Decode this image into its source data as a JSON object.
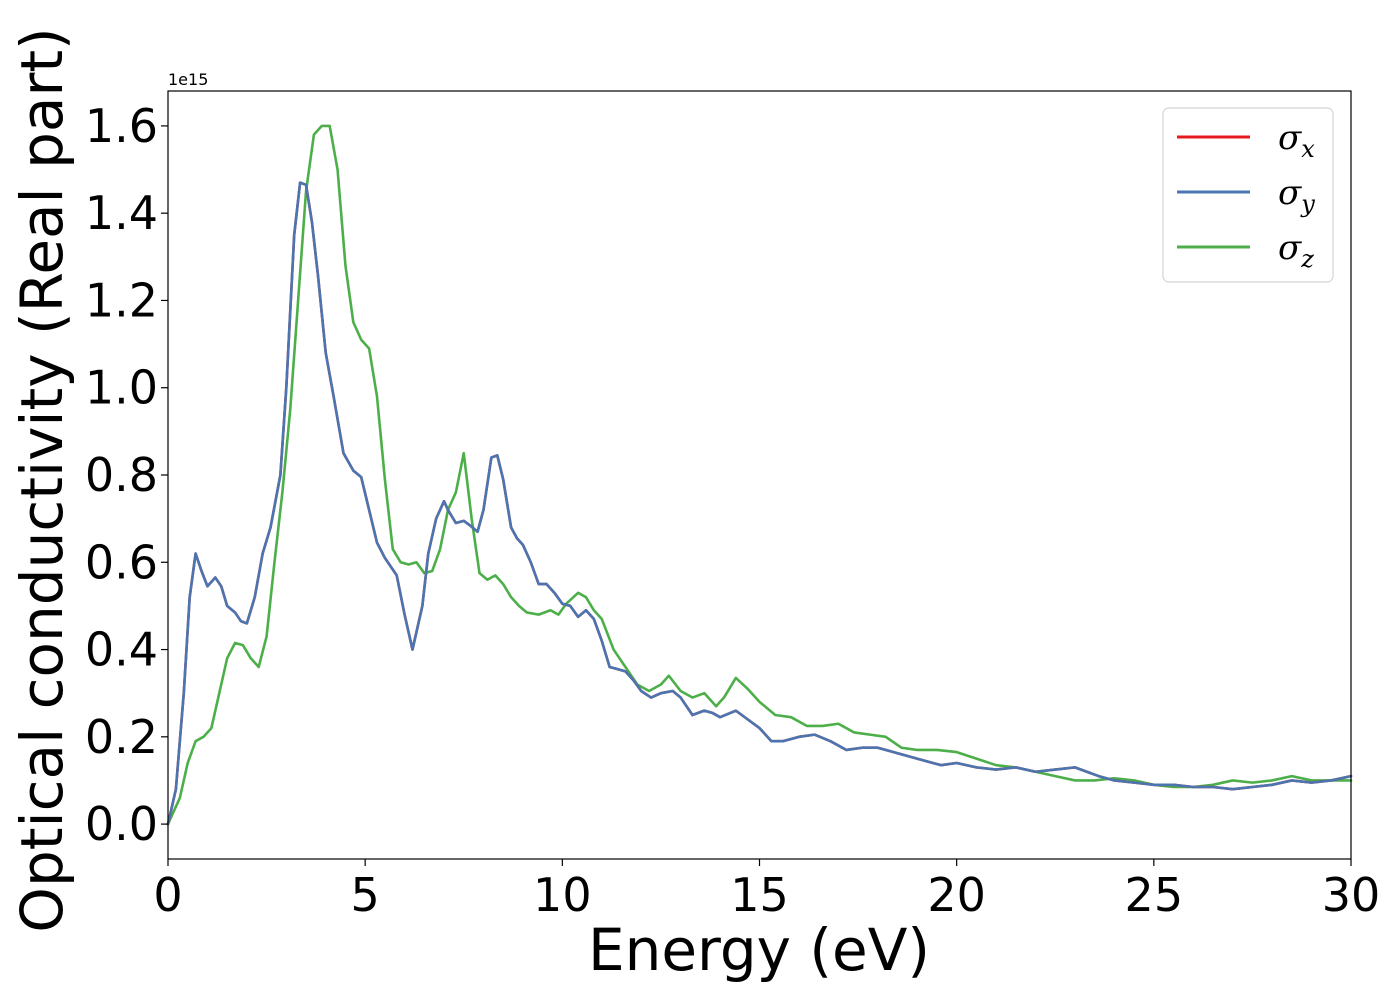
{
  "chart_data": {
    "type": "line",
    "title": "",
    "xlabel": "Energy (eV)",
    "ylabel": "Optical conductivity (Real part)",
    "y_offset_label": "1e15",
    "xlim": [
      0,
      30
    ],
    "ylim": [
      -0.08,
      1.68
    ],
    "xticks": [
      "0",
      "5",
      "10",
      "15",
      "20",
      "25",
      "30"
    ],
    "xtick_values": [
      0,
      5,
      10,
      15,
      20,
      25,
      30
    ],
    "yticks": [
      "0.0",
      "0.2",
      "0.4",
      "0.6",
      "0.8",
      "1.0",
      "1.2",
      "1.4",
      "1.6"
    ],
    "ytick_values": [
      0.0,
      0.2,
      0.4,
      0.6,
      0.8,
      1.0,
      1.2,
      1.4,
      1.6
    ],
    "grid": false,
    "legend_position": "top-right",
    "series": [
      {
        "name": "σx",
        "symbol": "σ",
        "subscript": "x",
        "color": "#e41a1c",
        "x": [
          0,
          0.2,
          0.4,
          0.55,
          0.7,
          0.85,
          1.0,
          1.2,
          1.35,
          1.5,
          1.7,
          1.85,
          2.0,
          2.2,
          2.4,
          2.6,
          2.85,
          3.0,
          3.2,
          3.35,
          3.5,
          3.65,
          3.8,
          4.0,
          4.2,
          4.45,
          4.7,
          4.9,
          5.1,
          5.3,
          5.5,
          5.8,
          6.0,
          6.2,
          6.45,
          6.6,
          6.8,
          7.0,
          7.1,
          7.3,
          7.5,
          7.65,
          7.85,
          8.0,
          8.2,
          8.35,
          8.5,
          8.7,
          8.85,
          9.0,
          9.2,
          9.4,
          9.6,
          9.8,
          10.0,
          10.2,
          10.4,
          10.6,
          10.8,
          11.0,
          11.2,
          11.4,
          11.6,
          11.8,
          12.0,
          12.25,
          12.5,
          12.8,
          13.0,
          13.3,
          13.6,
          13.8,
          14.0,
          14.4,
          14.7,
          15.0,
          15.3,
          15.6,
          16.0,
          16.4,
          16.8,
          17.2,
          17.6,
          18.0,
          18.4,
          18.8,
          19.2,
          19.6,
          20.0,
          20.5,
          21.0,
          21.5,
          22.0,
          22.5,
          23.0,
          23.3,
          23.6,
          24.0,
          24.5,
          25.0,
          25.5,
          26.0,
          26.5,
          27.0,
          27.5,
          28.0,
          28.5,
          29.0,
          29.5,
          30.0
        ],
        "values": [
          0.0,
          0.08,
          0.3,
          0.52,
          0.62,
          0.58,
          0.545,
          0.565,
          0.545,
          0.5,
          0.485,
          0.465,
          0.46,
          0.52,
          0.62,
          0.68,
          0.8,
          1.0,
          1.35,
          1.47,
          1.465,
          1.38,
          1.26,
          1.08,
          0.98,
          0.85,
          0.81,
          0.795,
          0.72,
          0.645,
          0.61,
          0.57,
          0.48,
          0.4,
          0.5,
          0.62,
          0.7,
          0.74,
          0.72,
          0.69,
          0.695,
          0.685,
          0.67,
          0.72,
          0.84,
          0.845,
          0.79,
          0.68,
          0.655,
          0.64,
          0.6,
          0.55,
          0.55,
          0.53,
          0.505,
          0.5,
          0.475,
          0.49,
          0.47,
          0.42,
          0.36,
          0.355,
          0.35,
          0.33,
          0.305,
          0.29,
          0.3,
          0.305,
          0.29,
          0.25,
          0.26,
          0.255,
          0.245,
          0.26,
          0.24,
          0.22,
          0.19,
          0.19,
          0.2,
          0.205,
          0.19,
          0.17,
          0.175,
          0.175,
          0.165,
          0.155,
          0.145,
          0.135,
          0.14,
          0.13,
          0.125,
          0.13,
          0.12,
          0.125,
          0.13,
          0.12,
          0.11,
          0.1,
          0.095,
          0.09,
          0.09,
          0.085,
          0.085,
          0.08,
          0.085,
          0.09,
          0.1,
          0.095,
          0.1,
          0.11
        ]
      },
      {
        "name": "σy",
        "symbol": "σ",
        "subscript": "y",
        "color": "#4a75b0",
        "x": [
          0,
          0.2,
          0.4,
          0.55,
          0.7,
          0.85,
          1.0,
          1.2,
          1.35,
          1.5,
          1.7,
          1.85,
          2.0,
          2.2,
          2.4,
          2.6,
          2.85,
          3.0,
          3.2,
          3.35,
          3.5,
          3.65,
          3.8,
          4.0,
          4.2,
          4.45,
          4.7,
          4.9,
          5.1,
          5.3,
          5.5,
          5.8,
          6.0,
          6.2,
          6.45,
          6.6,
          6.8,
          7.0,
          7.1,
          7.3,
          7.5,
          7.65,
          7.85,
          8.0,
          8.2,
          8.35,
          8.5,
          8.7,
          8.85,
          9.0,
          9.2,
          9.4,
          9.6,
          9.8,
          10.0,
          10.2,
          10.4,
          10.6,
          10.8,
          11.0,
          11.2,
          11.4,
          11.6,
          11.8,
          12.0,
          12.25,
          12.5,
          12.8,
          13.0,
          13.3,
          13.6,
          13.8,
          14.0,
          14.4,
          14.7,
          15.0,
          15.3,
          15.6,
          16.0,
          16.4,
          16.8,
          17.2,
          17.6,
          18.0,
          18.4,
          18.8,
          19.2,
          19.6,
          20.0,
          20.5,
          21.0,
          21.5,
          22.0,
          22.5,
          23.0,
          23.3,
          23.6,
          24.0,
          24.5,
          25.0,
          25.5,
          26.0,
          26.5,
          27.0,
          27.5,
          28.0,
          28.5,
          29.0,
          29.5,
          30.0
        ],
        "values": [
          0.0,
          0.08,
          0.3,
          0.52,
          0.62,
          0.58,
          0.545,
          0.565,
          0.545,
          0.5,
          0.485,
          0.465,
          0.46,
          0.52,
          0.62,
          0.68,
          0.8,
          1.0,
          1.35,
          1.47,
          1.465,
          1.38,
          1.26,
          1.08,
          0.98,
          0.85,
          0.81,
          0.795,
          0.72,
          0.645,
          0.61,
          0.57,
          0.48,
          0.4,
          0.5,
          0.62,
          0.7,
          0.74,
          0.72,
          0.69,
          0.695,
          0.685,
          0.67,
          0.72,
          0.84,
          0.845,
          0.79,
          0.68,
          0.655,
          0.64,
          0.6,
          0.55,
          0.55,
          0.53,
          0.505,
          0.5,
          0.475,
          0.49,
          0.47,
          0.42,
          0.36,
          0.355,
          0.35,
          0.33,
          0.305,
          0.29,
          0.3,
          0.305,
          0.29,
          0.25,
          0.26,
          0.255,
          0.245,
          0.26,
          0.24,
          0.22,
          0.19,
          0.19,
          0.2,
          0.205,
          0.19,
          0.17,
          0.175,
          0.175,
          0.165,
          0.155,
          0.145,
          0.135,
          0.14,
          0.13,
          0.125,
          0.13,
          0.12,
          0.125,
          0.13,
          0.12,
          0.11,
          0.1,
          0.095,
          0.09,
          0.09,
          0.085,
          0.085,
          0.08,
          0.085,
          0.09,
          0.1,
          0.095,
          0.1,
          0.11
        ]
      },
      {
        "name": "σz",
        "symbol": "σ",
        "subscript": "z",
        "color": "#4daf4a",
        "x": [
          0,
          0.3,
          0.5,
          0.7,
          0.9,
          1.1,
          1.3,
          1.5,
          1.7,
          1.9,
          2.1,
          2.3,
          2.5,
          2.7,
          2.9,
          3.1,
          3.3,
          3.5,
          3.7,
          3.9,
          4.1,
          4.3,
          4.5,
          4.7,
          4.9,
          5.1,
          5.3,
          5.5,
          5.7,
          5.9,
          6.1,
          6.3,
          6.5,
          6.7,
          6.9,
          7.1,
          7.3,
          7.5,
          7.7,
          7.9,
          8.1,
          8.3,
          8.5,
          8.7,
          8.9,
          9.1,
          9.4,
          9.7,
          9.9,
          10.1,
          10.4,
          10.6,
          10.8,
          11.0,
          11.3,
          11.6,
          11.9,
          12.2,
          12.5,
          12.7,
          13.0,
          13.3,
          13.6,
          13.9,
          14.1,
          14.4,
          14.7,
          15.0,
          15.4,
          15.8,
          16.2,
          16.6,
          17.0,
          17.4,
          17.8,
          18.2,
          18.6,
          19.0,
          19.5,
          20.0,
          20.5,
          21.0,
          21.5,
          22.0,
          22.5,
          23.0,
          23.5,
          24.0,
          24.5,
          25.0,
          25.5,
          26.0,
          26.5,
          27.0,
          27.5,
          28.0,
          28.5,
          29.0,
          29.5,
          30.0
        ],
        "values": [
          0.0,
          0.06,
          0.14,
          0.19,
          0.2,
          0.22,
          0.3,
          0.38,
          0.415,
          0.41,
          0.38,
          0.36,
          0.43,
          0.6,
          0.76,
          0.95,
          1.2,
          1.45,
          1.58,
          1.6,
          1.6,
          1.5,
          1.28,
          1.15,
          1.11,
          1.09,
          0.98,
          0.79,
          0.63,
          0.6,
          0.595,
          0.6,
          0.575,
          0.58,
          0.63,
          0.72,
          0.76,
          0.85,
          0.7,
          0.575,
          0.56,
          0.57,
          0.55,
          0.52,
          0.5,
          0.485,
          0.48,
          0.49,
          0.48,
          0.505,
          0.53,
          0.52,
          0.49,
          0.47,
          0.4,
          0.36,
          0.32,
          0.305,
          0.32,
          0.34,
          0.305,
          0.29,
          0.3,
          0.27,
          0.29,
          0.335,
          0.31,
          0.28,
          0.25,
          0.245,
          0.225,
          0.225,
          0.23,
          0.21,
          0.205,
          0.2,
          0.175,
          0.17,
          0.17,
          0.165,
          0.15,
          0.135,
          0.13,
          0.12,
          0.11,
          0.1,
          0.1,
          0.105,
          0.1,
          0.09,
          0.085,
          0.085,
          0.09,
          0.1,
          0.095,
          0.1,
          0.11,
          0.1,
          0.1,
          0.1
        ]
      }
    ]
  }
}
